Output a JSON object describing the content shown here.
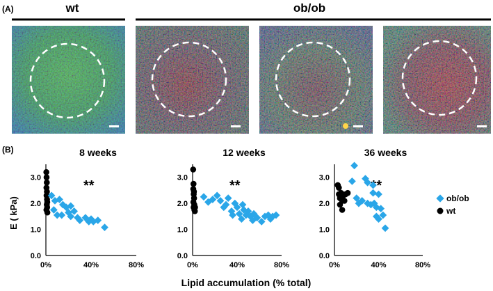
{
  "panel_a": {
    "label": "(A)",
    "group_wt": "wt",
    "group_obob": "ob/ob",
    "images": [
      {
        "name": "wt-tissue",
        "palette": "green"
      },
      {
        "name": "obob-tissue-1",
        "palette": "red-green"
      },
      {
        "name": "obob-tissue-2",
        "palette": "red-green"
      },
      {
        "name": "obob-tissue-3",
        "palette": "red-green"
      }
    ]
  },
  "panel_b": {
    "label": "(B)"
  },
  "colors": {
    "obob": "#2aa6e8",
    "wt": "#000000"
  },
  "chart_data": [
    {
      "type": "scatter",
      "title": "8 weeks",
      "ylabel": "E ( kPa)",
      "xlabel": "Lipid accumulation (% total)",
      "xlim": [
        0,
        80
      ],
      "ylim": [
        0,
        3.5
      ],
      "xticks": [
        "0%",
        "40%",
        "80%"
      ],
      "yticks": [
        "0.0",
        "1.0",
        "2.0",
        "3.0"
      ],
      "annotation": "**",
      "series": [
        {
          "name": "wt",
          "marker": "circle",
          "points": [
            [
              0.4,
              3.2
            ],
            [
              0.6,
              3.0
            ],
            [
              0.8,
              2.8
            ],
            [
              0.5,
              2.6
            ],
            [
              0.9,
              2.45
            ],
            [
              0.6,
              2.3
            ],
            [
              1.0,
              2.15
            ],
            [
              1.2,
              2.05
            ],
            [
              0.8,
              1.95
            ],
            [
              1.1,
              1.85
            ],
            [
              0.5,
              1.75
            ],
            [
              1.3,
              1.65
            ]
          ]
        },
        {
          "name": "ob/ob",
          "marker": "diamond",
          "points": [
            [
              5,
              2.3
            ],
            [
              8,
              2.1
            ],
            [
              12,
              2.15
            ],
            [
              15,
              1.95
            ],
            [
              18,
              1.85
            ],
            [
              22,
              1.9
            ],
            [
              20,
              1.65
            ],
            [
              25,
              1.7
            ],
            [
              28,
              1.45
            ],
            [
              30,
              1.35
            ],
            [
              22,
              1.5
            ],
            [
              35,
              1.45
            ],
            [
              38,
              1.3
            ],
            [
              40,
              1.4
            ],
            [
              42,
              1.3
            ],
            [
              46,
              1.35
            ],
            [
              52,
              1.08
            ],
            [
              10,
              1.55
            ],
            [
              14,
              1.55
            ],
            [
              7,
              1.75
            ]
          ]
        }
      ]
    },
    {
      "type": "scatter",
      "title": "12 weeks",
      "ylabel": "E ( kPa)",
      "xlabel": "Lipid accumulation (% total)",
      "xlim": [
        0,
        80
      ],
      "ylim": [
        0,
        3.5
      ],
      "xticks": [
        "0%",
        "40%",
        "80%"
      ],
      "yticks": [
        "0.0",
        "1.0",
        "2.0",
        "3.0"
      ],
      "annotation": "**",
      "series": [
        {
          "name": "wt",
          "marker": "circle",
          "points": [
            [
              0.5,
              3.3
            ],
            [
              0.8,
              2.75
            ],
            [
              0.6,
              2.55
            ],
            [
              1.0,
              2.35
            ],
            [
              1.3,
              2.2
            ],
            [
              0.7,
              2.05
            ],
            [
              1.5,
              1.95
            ],
            [
              0.9,
              1.85
            ],
            [
              1.6,
              1.75
            ],
            [
              2.0,
              1.7
            ],
            [
              1.2,
              2.45
            ],
            [
              2.2,
              1.85
            ]
          ]
        },
        {
          "name": "ob/ob",
          "marker": "diamond",
          "points": [
            [
              10,
              2.25
            ],
            [
              14,
              2.05
            ],
            [
              18,
              2.15
            ],
            [
              22,
              2.3
            ],
            [
              25,
              2.1
            ],
            [
              28,
              1.85
            ],
            [
              30,
              1.95
            ],
            [
              32,
              2.2
            ],
            [
              35,
              1.7
            ],
            [
              38,
              2.0
            ],
            [
              40,
              1.85
            ],
            [
              42,
              1.6
            ],
            [
              45,
              1.95
            ],
            [
              46,
              1.75
            ],
            [
              48,
              1.55
            ],
            [
              50,
              1.7
            ],
            [
              52,
              1.5
            ],
            [
              55,
              1.6
            ],
            [
              58,
              1.45
            ],
            [
              62,
              1.3
            ],
            [
              65,
              1.5
            ],
            [
              68,
              1.55
            ],
            [
              70,
              1.4
            ],
            [
              72,
              1.5
            ],
            [
              75,
              1.55
            ],
            [
              44,
              1.4
            ],
            [
              36,
              1.55
            ],
            [
              54,
              1.35
            ]
          ]
        }
      ]
    },
    {
      "type": "scatter",
      "title": "36 weeks",
      "ylabel": "E ( kPa)",
      "xlabel": "Lipid accumulation (% total)",
      "xlim": [
        0,
        80
      ],
      "ylim": [
        0,
        3.5
      ],
      "xticks": [
        "0%",
        "40%",
        "80%"
      ],
      "yticks": [
        "0.0",
        "1.0",
        "2.0",
        "3.0"
      ],
      "annotation": "**",
      "legend": {
        "placement": "right",
        "entries": [
          "ob/ob",
          "wt"
        ]
      },
      "series": [
        {
          "name": "wt",
          "marker": "circle",
          "points": [
            [
              3,
              2.7
            ],
            [
              4,
              2.35
            ],
            [
              5,
              2.2
            ],
            [
              6,
              2.4
            ],
            [
              7,
              2.1
            ],
            [
              5,
              1.95
            ],
            [
              8,
              2.3
            ],
            [
              10,
              2.35
            ],
            [
              9,
              2.1
            ],
            [
              12,
              2.4
            ],
            [
              7,
              1.75
            ],
            [
              4,
              2.6
            ]
          ]
        },
        {
          "name": "ob/ob",
          "marker": "diamond",
          "points": [
            [
              18,
              3.45
            ],
            [
              16,
              2.85
            ],
            [
              20,
              2.2
            ],
            [
              22,
              2.0
            ],
            [
              25,
              2.1
            ],
            [
              28,
              2.95
            ],
            [
              30,
              2.8
            ],
            [
              30,
              2.0
            ],
            [
              33,
              1.95
            ],
            [
              35,
              2.4
            ],
            [
              36,
              2.0
            ],
            [
              38,
              1.85
            ],
            [
              38,
              1.5
            ],
            [
              40,
              2.35
            ],
            [
              42,
              1.8
            ],
            [
              40,
              1.4
            ],
            [
              44,
              1.55
            ],
            [
              46,
              1.05
            ],
            [
              35,
              2.7
            ]
          ]
        }
      ]
    }
  ]
}
